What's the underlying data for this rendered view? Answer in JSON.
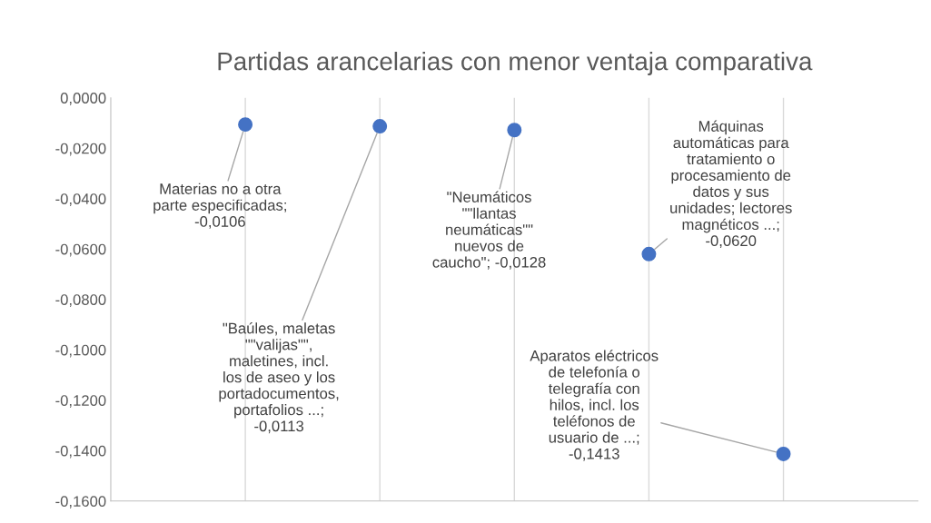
{
  "chart_data": {
    "type": "scatter",
    "title": "Partidas arancelarias con menor ventaja comparativa",
    "categories": [
      null,
      null,
      null,
      null,
      null
    ],
    "values": [
      -0.0106,
      -0.0113,
      -0.0128,
      -0.062,
      -0.1413
    ],
    "color": "#4472c4",
    "marker": "circle",
    "value_labels": [
      "Materias no a otra parte especificadas; -0,0106",
      "\"Baúles, maletas \"\"valijas\"\", maletines, incl. los de aseo y los portadocumentos, portafolios ...; -0,0113",
      "\"Neumáticos \"\"llantas neumáticas\"\" nuevos de caucho\"; -0,0128",
      "Máquinas automáticas para tratamiento o procesamiento de datos y sus unidades; lectores magnéticos ...; -0,0620",
      "Aparatos eléctricos de telefonía o telegrafía con hilos, incl. los teléfonos de usuario de ...; -0,1413"
    ],
    "ylim": [
      -0.16,
      0
    ],
    "yticks": [
      {
        "value": 0,
        "label": "0,0000"
      },
      {
        "value": -0.02,
        "label": "-0,0200"
      },
      {
        "value": -0.04,
        "label": "-0,0400"
      },
      {
        "value": -0.06,
        "label": "-0,0600"
      },
      {
        "value": -0.08,
        "label": "-0,0800"
      },
      {
        "value": -0.1,
        "label": "-0,1000"
      },
      {
        "value": -0.12,
        "label": "-0,1200"
      },
      {
        "value": -0.14,
        "label": "-0,1400"
      },
      {
        "value": -0.16,
        "label": "-0,1600"
      }
    ],
    "grid": "x",
    "legend": false
  }
}
